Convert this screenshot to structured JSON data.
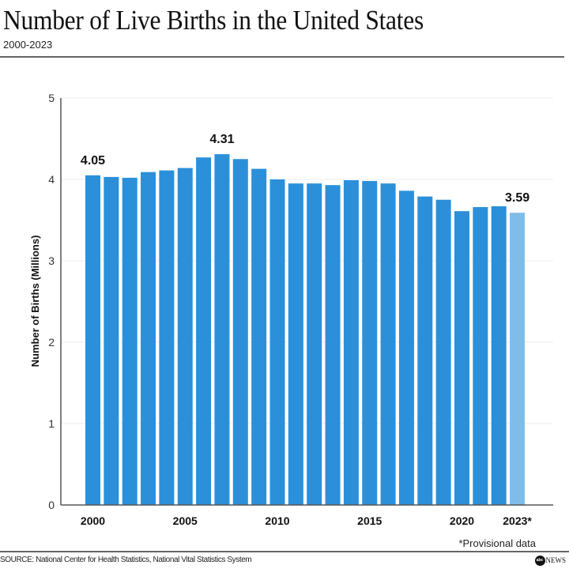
{
  "header": {
    "title": "Number of Live Births in the United States",
    "subtitle": "2000-2023"
  },
  "footer": {
    "footnote": "*Provisional data",
    "source": "SOURCE: National Center for Health Statistics, National Vital Statistics System",
    "logo_text": "NEWS",
    "logo_mark": "abc"
  },
  "colors": {
    "bar": "#2b90d9",
    "bar_provisional": "#7fbde8",
    "grid": "#eeeeee",
    "axis": "#555555"
  },
  "chart_data": {
    "type": "bar",
    "title": "Number of Live Births in the United States",
    "subtitle": "2000-2023",
    "xlabel": "",
    "ylabel": "Number of Births (Millions)",
    "ylim": [
      0,
      5
    ],
    "yticks": [
      "0",
      "1",
      "2",
      "3",
      "4",
      "5"
    ],
    "grid": true,
    "categories": [
      "2000",
      "2001",
      "2002",
      "2003",
      "2004",
      "2005",
      "2006",
      "2007",
      "2008",
      "2009",
      "2010",
      "2011",
      "2012",
      "2013",
      "2014",
      "2015",
      "2016",
      "2017",
      "2018",
      "2019",
      "2020",
      "2021",
      "2022",
      "2023"
    ],
    "values": [
      4.05,
      4.03,
      4.02,
      4.09,
      4.11,
      4.14,
      4.27,
      4.31,
      4.25,
      4.13,
      4.0,
      3.95,
      3.95,
      3.93,
      3.99,
      3.98,
      3.95,
      3.86,
      3.79,
      3.75,
      3.61,
      3.66,
      3.67,
      3.59
    ],
    "provisional": [
      false,
      false,
      false,
      false,
      false,
      false,
      false,
      false,
      false,
      false,
      false,
      false,
      false,
      false,
      false,
      false,
      false,
      false,
      false,
      false,
      false,
      false,
      false,
      true
    ],
    "xtick_labels": [
      {
        "index": 0,
        "label": "2000"
      },
      {
        "index": 5,
        "label": "2005"
      },
      {
        "index": 10,
        "label": "2010"
      },
      {
        "index": 15,
        "label": "2015"
      },
      {
        "index": 20,
        "label": "2020"
      },
      {
        "index": 23,
        "label": "2023*"
      }
    ],
    "data_labels": [
      {
        "index": 0,
        "label": "4.05"
      },
      {
        "index": 7,
        "label": "4.31"
      },
      {
        "index": 23,
        "label": "3.59"
      }
    ]
  }
}
